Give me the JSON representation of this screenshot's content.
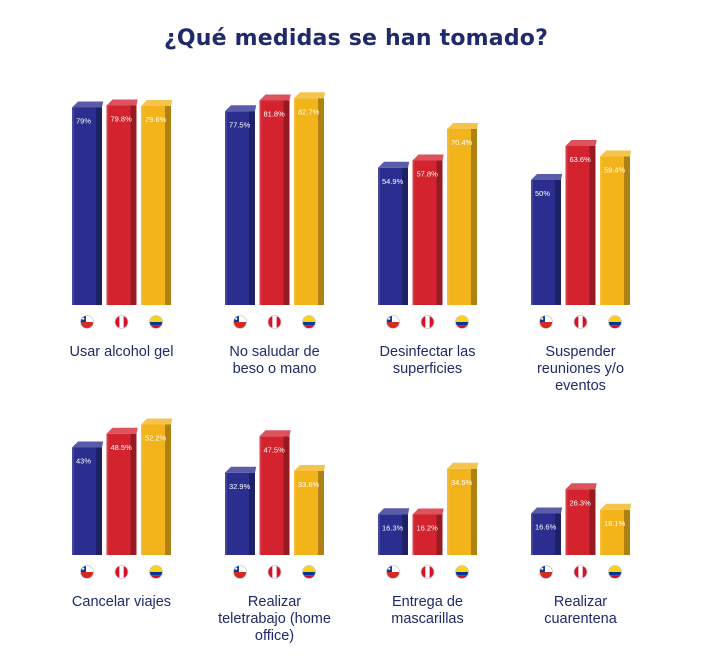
{
  "chart_data": {
    "type": "bar",
    "title": "¿Qué medidas se han tomado?",
    "series": [
      {
        "name": "chile-flag-icon",
        "color": "#2b2e8e"
      },
      {
        "name": "peru-flag-icon",
        "color": "#d2232f"
      },
      {
        "name": "colombia-flag-icon",
        "color": "#f2b31b"
      }
    ],
    "groups": [
      {
        "label": "Usar alcohol gel",
        "values": [
          79,
          79.8,
          79.6
        ],
        "value_labels": [
          "79%",
          "79.8%",
          "79.6%"
        ]
      },
      {
        "label": "No saludar de beso o mano",
        "values": [
          77.5,
          81.8,
          82.7
        ],
        "value_labels": [
          "77.5%",
          "81.8%",
          "82.7%"
        ]
      },
      {
        "label": "Desinfectar las superficies",
        "values": [
          54.9,
          57.8,
          70.4
        ],
        "value_labels": [
          "54.9%",
          "57.8%",
          "70.4%"
        ]
      },
      {
        "label": "Suspender reuniones y/o eventos",
        "values": [
          50,
          63.6,
          59.4
        ],
        "value_labels": [
          "50%",
          "63.6%",
          "59.4%"
        ]
      },
      {
        "label": "Cancelar viajes",
        "values": [
          43,
          48.5,
          52.2
        ],
        "value_labels": [
          "43%",
          "48.5%",
          "52.2%"
        ]
      },
      {
        "label": "Realizar teletrabajo (home office)",
        "values": [
          32.9,
          47.5,
          33.6
        ],
        "value_labels": [
          "32.9%",
          "47.5%",
          "33.6%"
        ]
      },
      {
        "label": "Entrega de mascarillas",
        "values": [
          16.3,
          16.2,
          34.5
        ],
        "value_labels": [
          "16.3%",
          "16.2%",
          "34.5%"
        ]
      },
      {
        "label": "Realizar cuarentena",
        "values": [
          16.6,
          26.3,
          18.1
        ],
        "value_labels": [
          "16.6%",
          "26.3%",
          "18.1%"
        ]
      }
    ],
    "flags": {
      "chile-flag-icon": {
        "top": "#ffffff",
        "bottom": "#d52b1e",
        "canton": "#0039a6"
      },
      "peru-flag-icon": {
        "side": "#d91023",
        "center": "#ffffff"
      },
      "colombia-flag-icon": {
        "top": "#fcd116",
        "middle": "#003893",
        "bottom": "#ce1126"
      }
    }
  }
}
